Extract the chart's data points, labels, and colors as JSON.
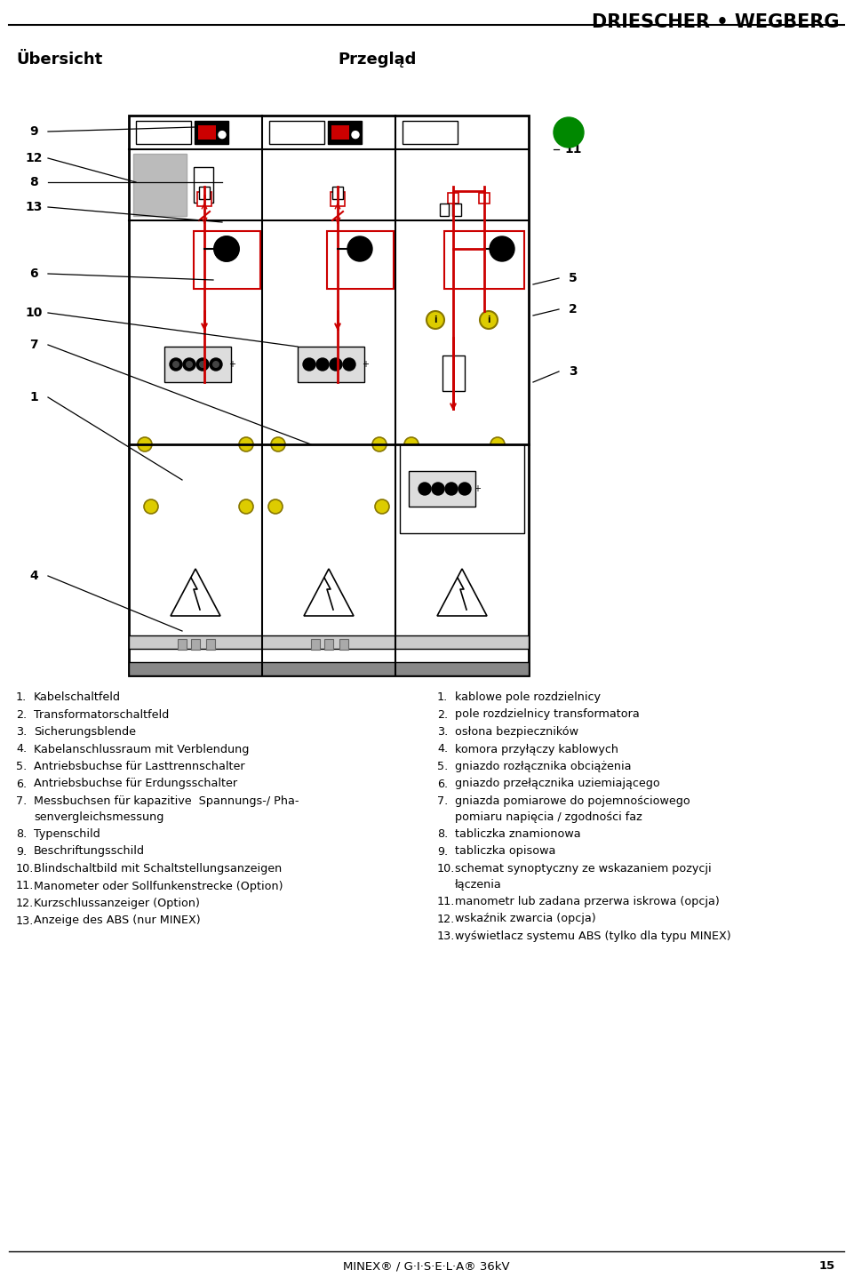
{
  "title": "DRIESCHER • WEGBERG",
  "subtitle_left": "Übersicht",
  "subtitle_right": "Przegląd",
  "footer_text": "MINEX® / G·I·S·E·L·A® 36kV",
  "footer_page": "15",
  "german_list": [
    "Kabelschaltfeld",
    "Transformatorschaltfeld",
    "Sicherungsblende",
    "Kabelanschlussraum mit Verblendung",
    "Antriebsbuchse für Lasttrennschalter",
    "Antriebsbuchse für Erdungsschalter",
    "Messbuchsen für kapazitive  Spannungs-/ Pha-|senvergleichsmessung",
    "Typenschild",
    "Beschriftungsschild",
    "Blindschaltbild mit Schaltstellungsanzeigen",
    "Manometer oder Sollfunkenstrecke (Option)",
    "Kurzschlussanzeiger (Option)",
    "Anzeige des ABS (nur MINEX)"
  ],
  "polish_list": [
    "kablowe pole rozdzielnicy",
    "pole rozdzielnicy transformatora",
    "osłona bezpieczników",
    "komora przyłączy kablowych",
    "gniazdo rozłącznika obciążenia",
    "gniazdo przełącznika uziemiającego",
    "gniazda pomiarowe do pojemnościowego|pomiaru napięcia / zgodności faz",
    "tabliczka znamionowa",
    "tabliczka opisowa",
    "schemat synoptyczny ze wskazaniem pozycji|łączenia",
    "manometr lub zadana przerwa iskrowa (opcja)",
    "wskaźnik zwarcia (opcja)",
    "wyświetlacz systemu ABS (tylko dla typu MINEX)"
  ],
  "bg_color": "#ffffff",
  "text_color": "#000000",
  "red_color": "#cc0000",
  "green_color": "#008800",
  "yellow_color": "#ddcc00"
}
